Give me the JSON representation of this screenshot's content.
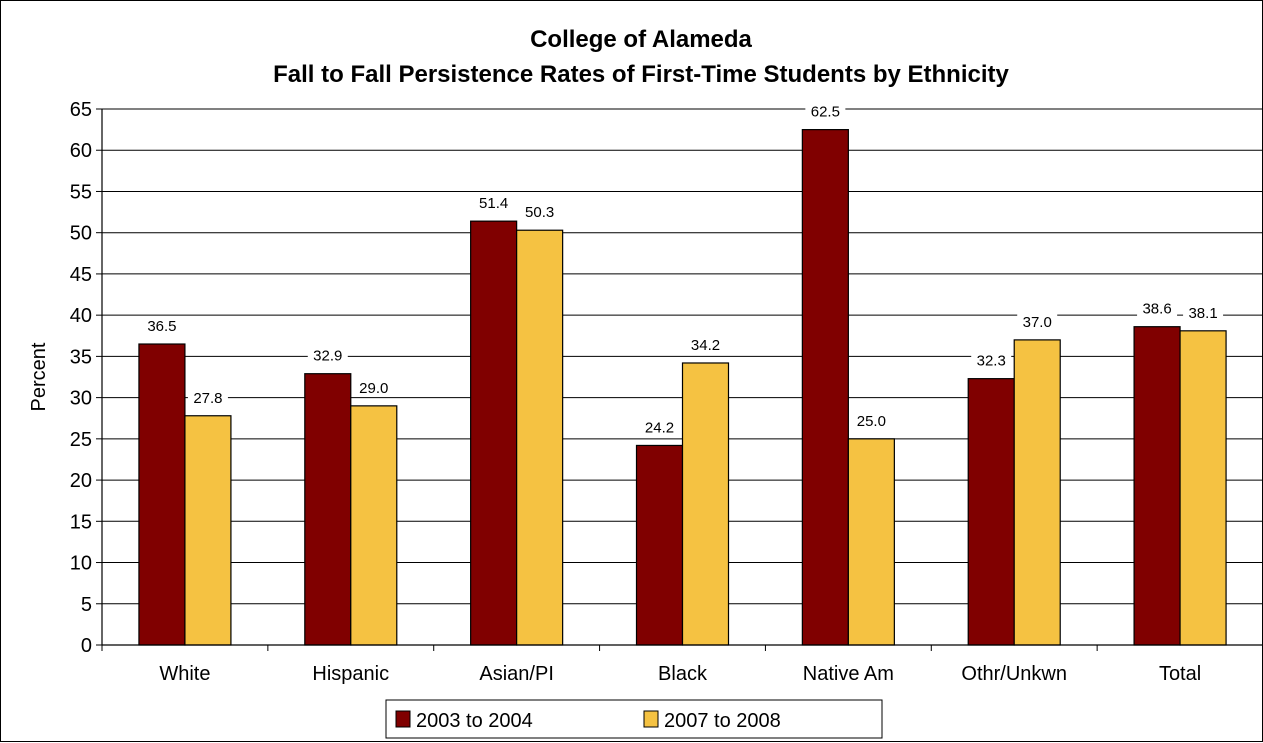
{
  "chart_data": {
    "type": "bar",
    "title": "College of Alameda",
    "subtitle": "Fall to Fall Persistence Rates of First-Time Students by Ethnicity",
    "xlabel": "",
    "ylabel": "Percent",
    "ylim": [
      0,
      65
    ],
    "yticks": [
      0,
      5,
      10,
      15,
      20,
      25,
      30,
      35,
      40,
      45,
      50,
      55,
      60,
      65
    ],
    "grid": true,
    "legend_position": "bottom",
    "categories": [
      "White",
      "Hispanic",
      "Asian/PI",
      "Black",
      "Native Am",
      "Othr/Unkwn",
      "Total"
    ],
    "series": [
      {
        "name": "2003 to 2004",
        "color": "#800000",
        "values": [
          36.5,
          32.9,
          51.4,
          24.2,
          62.5,
          32.3,
          38.6
        ],
        "labels": [
          "36.5",
          "32.9",
          "51.4",
          "24.2",
          "62.5",
          "32.3",
          "38.6"
        ]
      },
      {
        "name": "2007 to 2008",
        "color": "#F5C242",
        "values": [
          27.8,
          29.0,
          50.3,
          34.2,
          25.0,
          37.0,
          38.1
        ],
        "labels": [
          "27.8",
          "29.0",
          "50.3",
          "34.2",
          "25.0",
          "37.0",
          "38.1"
        ]
      }
    ]
  }
}
